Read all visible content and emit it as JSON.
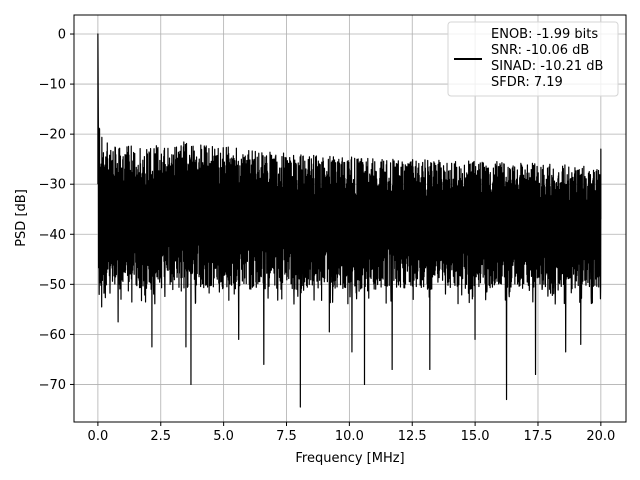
{
  "chart_data": {
    "type": "line",
    "title": "",
    "xlabel": "Frequency [MHz]",
    "ylabel": "PSD [dB]",
    "xlim": [
      -0.95,
      21.0
    ],
    "ylim": [
      -77.5,
      3.8
    ],
    "xticks": [
      0.0,
      2.5,
      5.0,
      7.5,
      10.0,
      12.5,
      15.0,
      17.5,
      20.0
    ],
    "xtick_labels": [
      "0.0",
      "2.5",
      "5.0",
      "7.5",
      "10.0",
      "12.5",
      "15.0",
      "17.5",
      "20.0"
    ],
    "yticks": [
      0,
      -10,
      -20,
      -30,
      -40,
      -50,
      -60,
      -70
    ],
    "ytick_labels": [
      "0",
      "−10",
      "−20",
      "−30",
      "−40",
      "−50",
      "−60",
      "−70"
    ],
    "grid": true,
    "legend_position": "top-right",
    "legend_lines": [
      "ENOB: -1.99 bits",
      "SNR: -10.06 dB",
      "SINAD: -10.21 dB",
      "SFDR: 7.19"
    ],
    "series": [
      {
        "color": "#000000",
        "x_range": [
          0.0,
          20.0
        ],
        "peak": {
          "x": 0.0,
          "y": 0.0
        },
        "upper_envelope": [
          [
            0.05,
            -15
          ],
          [
            0.1,
            -20
          ],
          [
            0.5,
            -22.5
          ],
          [
            3.5,
            -21.5
          ],
          [
            5.0,
            -22.5
          ],
          [
            8.0,
            -24
          ],
          [
            12.0,
            -25
          ],
          [
            16.0,
            -25.5
          ],
          [
            20.0,
            -26.5
          ]
        ],
        "lower_envelope_typical": -51,
        "deep_dips": [
          [
            0.05,
            -52
          ],
          [
            0.15,
            -54.5
          ],
          [
            0.8,
            -57.5
          ],
          [
            2.15,
            -62.5
          ],
          [
            3.5,
            -62.5
          ],
          [
            3.7,
            -70
          ],
          [
            5.6,
            -61
          ],
          [
            6.6,
            -66
          ],
          [
            8.05,
            -74.5
          ],
          [
            9.2,
            -59.5
          ],
          [
            10.1,
            -63.5
          ],
          [
            10.6,
            -70
          ],
          [
            11.7,
            -67
          ],
          [
            13.2,
            -67
          ],
          [
            15.0,
            -61
          ],
          [
            16.25,
            -73
          ],
          [
            17.4,
            -68
          ],
          [
            18.6,
            -63.5
          ],
          [
            19.2,
            -62
          ]
        ],
        "end_spike": {
          "x": 20.0,
          "y": -23
        }
      }
    ]
  }
}
